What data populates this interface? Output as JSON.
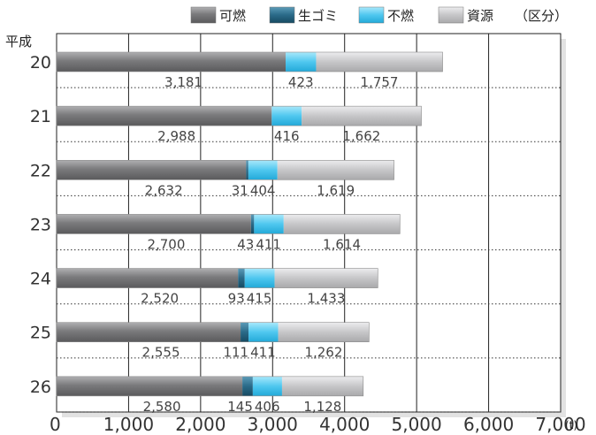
{
  "chart_data": {
    "type": "bar",
    "stacked": true,
    "orientation": "horizontal",
    "y_axis_title": "平成",
    "unit": "(t)",
    "legend_note": "（区分）",
    "legend_position": "top-right",
    "categories": [
      "20",
      "21",
      "22",
      "23",
      "24",
      "25",
      "26"
    ],
    "series": [
      {
        "name": "可燃",
        "color": "#7d7d7f",
        "values": [
          3181,
          2988,
          2632,
          2700,
          2520,
          2555,
          2580
        ],
        "labels": [
          "3,181",
          "2,988",
          "2,632",
          "2,700",
          "2,520",
          "2,555",
          "2,580"
        ]
      },
      {
        "name": "生ゴミ",
        "color": "#2c6e8c",
        "values": [
          0,
          0,
          31,
          43,
          93,
          111,
          145
        ],
        "labels": [
          "",
          "",
          "31",
          "43",
          "93",
          "111",
          "145"
        ]
      },
      {
        "name": "不燃",
        "color": "#4cc8f0",
        "values": [
          423,
          416,
          404,
          411,
          415,
          411,
          406
        ],
        "labels": [
          "423",
          "416",
          "404",
          "411",
          "415",
          "411",
          "406"
        ]
      },
      {
        "name": "資源",
        "color": "#c4c4c6",
        "values": [
          1757,
          1662,
          1619,
          1614,
          1433,
          1262,
          1128
        ],
        "labels": [
          "1,757",
          "1,662",
          "1,619",
          "1,614",
          "1,433",
          "1,262",
          "1,128"
        ]
      }
    ],
    "xlim": [
      0,
      7000
    ],
    "xticks": [
      0,
      1000,
      2000,
      3000,
      4000,
      5000,
      6000,
      7000
    ],
    "xtick_labels": [
      "0",
      "1,000",
      "2,000",
      "3,000",
      "4,000",
      "5,000",
      "6,000",
      "7,000"
    ],
    "grid": true
  }
}
